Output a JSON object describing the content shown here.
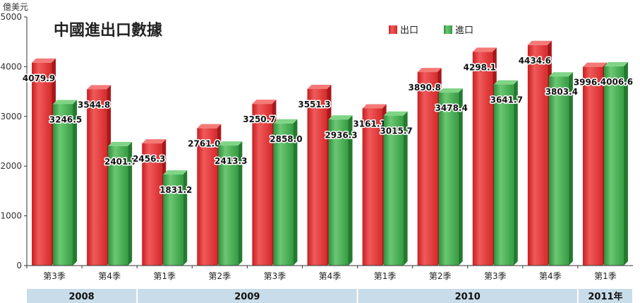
{
  "colors": {
    "export": "#e63a3c",
    "import": "#3fae4c",
    "year_band": "#c9dcea"
  },
  "chart_data": {
    "type": "bar",
    "title": "中國進出口數據",
    "unit": "億美元",
    "ylim": [
      0,
      5000
    ],
    "yticks": [
      0,
      1000,
      2000,
      3000,
      4000,
      5000
    ],
    "grid": false,
    "legend_position": "top-right",
    "categories": [
      "第3季",
      "第4季",
      "第1季",
      "第2季",
      "第3季",
      "第4季",
      "第1季",
      "第2季",
      "第3季",
      "第4季",
      "第1季"
    ],
    "years": [
      {
        "label": "2008",
        "span": 2
      },
      {
        "label": "2009",
        "span": 4
      },
      {
        "label": "2010",
        "span": 4
      },
      {
        "label": "2011年",
        "span": 1
      }
    ],
    "series": [
      {
        "name": "出口",
        "values": [
          4079.9,
          3544.8,
          2456.3,
          2761.0,
          3250.7,
          3551.3,
          3161.1,
          3890.8,
          4298.1,
          4434.6,
          3996.4
        ],
        "labels": [
          "4079.9",
          "3544.8",
          "2456.3",
          "2761.0",
          "3250.7",
          "3551.3",
          "3161.1",
          "3890.8",
          "4298.1",
          "4434.6",
          "3996.4"
        ]
      },
      {
        "name": "進口",
        "values": [
          3246.5,
          2401.7,
          1831.2,
          2413.3,
          2858.0,
          2936.3,
          3015.7,
          3478.4,
          3641.7,
          3803.4,
          4006.6
        ],
        "labels": [
          "3246.5",
          "2401.7",
          "1831.2",
          "2413.3",
          "2858.0",
          "2936.3",
          "3015.7",
          "3478.4",
          "3641.7",
          "3803.4",
          "4006.6"
        ]
      }
    ]
  }
}
